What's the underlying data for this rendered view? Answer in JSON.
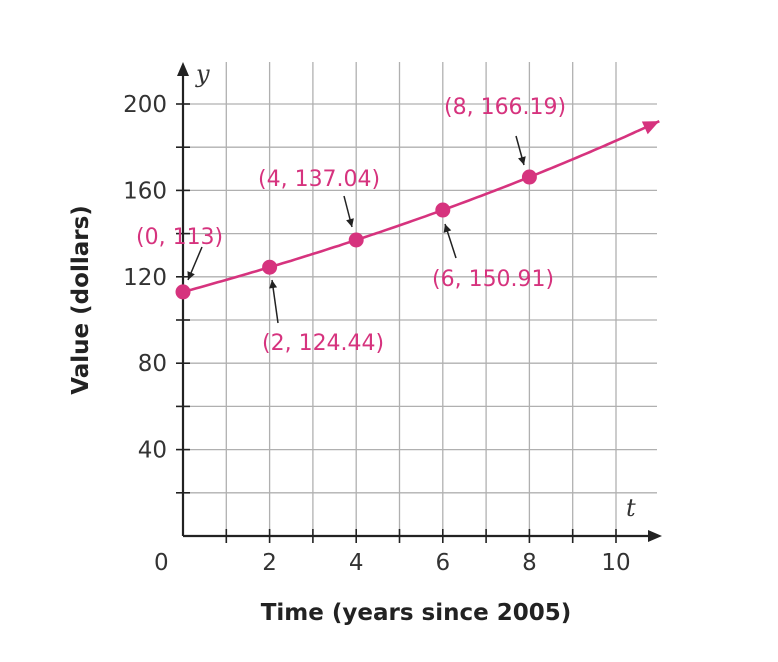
{
  "colors": {
    "accent": "#d6337e",
    "grid": "#b0b0b0",
    "axis": "#222222"
  },
  "chart_data": {
    "type": "line",
    "title": "",
    "xlabel": "Time (years since 2005)",
    "ylabel": "Value (dollars)",
    "x_var": "t",
    "y_var": "y",
    "origin_label": "0",
    "xlim": [
      0,
      11
    ],
    "ylim": [
      0,
      220
    ],
    "grid": true,
    "x_ticks": [
      2,
      4,
      6,
      8,
      10
    ],
    "y_ticks": [
      40,
      80,
      120,
      160,
      200
    ],
    "x_tick_labels": [
      "2",
      "4",
      "6",
      "8",
      "10"
    ],
    "y_tick_labels": [
      "40",
      "80",
      "120",
      "160",
      "200"
    ],
    "points": [
      {
        "x": 0,
        "y": 113,
        "label": "(0, 113)"
      },
      {
        "x": 2,
        "y": 124.44,
        "label": "(2, 124.44)"
      },
      {
        "x": 4,
        "y": 137.04,
        "label": "(4, 137.04)"
      },
      {
        "x": 6,
        "y": 150.91,
        "label": "(6, 150.91)"
      },
      {
        "x": 8,
        "y": 166.19,
        "label": "(8, 166.19)"
      }
    ],
    "curve_extends_to_x": 11
  }
}
